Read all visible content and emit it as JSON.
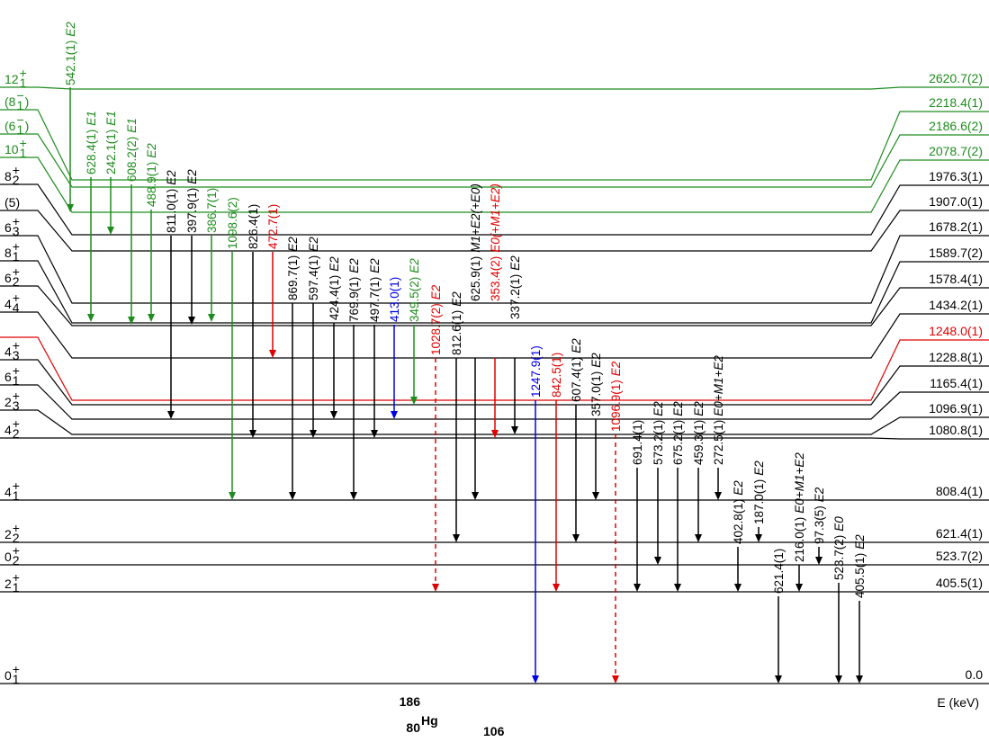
{
  "nucleus": {
    "mass": "186",
    "z": "80",
    "symbol": "Hg",
    "n": "106"
  },
  "axis_label": "E (keV)",
  "levels": [
    {
      "spin": {
        "base": "12",
        "sub": "1",
        "sup": "+"
      },
      "energy": "2620.7(2)",
      "color": "#1e8c1e"
    },
    {
      "spin": {
        "base": "(8",
        "sub": "1",
        "sup": "−",
        "suffix": ")"
      },
      "energy": "2218.4(1)",
      "color": "#1e8c1e"
    },
    {
      "spin": {
        "base": "(6",
        "sub": "1",
        "sup": "−",
        "suffix": ")"
      },
      "energy": "2186.6(2)",
      "color": "#1e8c1e"
    },
    {
      "spin": {
        "base": "10",
        "sub": "1",
        "sup": "+"
      },
      "energy": "2078.7(2)",
      "color": "#1e8c1e"
    },
    {
      "spin": {
        "base": "8",
        "sub": "2",
        "sup": "+"
      },
      "energy": "1976.3(1)"
    },
    {
      "spin": {
        "base": "(5)"
      },
      "energy": "1907.0(1)"
    },
    {
      "spin": {
        "base": "6",
        "sub": "3",
        "sup": "+"
      },
      "energy": "1678.2(1)"
    },
    {
      "spin": {
        "base": "8",
        "sub": "1",
        "sup": "+"
      },
      "energy": "1589.7(2)"
    },
    {
      "spin": {
        "base": "6",
        "sub": "2",
        "sup": "+"
      },
      "energy": "1578.4(1)"
    },
    {
      "spin": {
        "base": "4",
        "sub": "4",
        "sup": "+"
      },
      "energy": "1434.2(1)"
    },
    {
      "energy": "1248.0(1)",
      "color": "#e00000"
    },
    {
      "spin": {
        "base": "4",
        "sub": "3",
        "sup": "+"
      },
      "energy": "1228.8(1)"
    },
    {
      "spin": {
        "base": "6",
        "sub": "1",
        "sup": "+"
      },
      "energy": "1165.4(1)"
    },
    {
      "spin": {
        "base": "2",
        "sub": "3",
        "sup": "+"
      },
      "energy": "1096.9(1)"
    },
    {
      "spin": {
        "base": "4",
        "sub": "2",
        "sup": "+"
      },
      "energy": "1080.8(1)"
    },
    {
      "spin": {
        "base": "4",
        "sub": "1",
        "sup": "+"
      },
      "energy": "808.4(1)"
    },
    {
      "spin": {
        "base": "2",
        "sub": "2",
        "sup": "+"
      },
      "energy": "621.4(1)"
    },
    {
      "spin": {
        "base": "0",
        "sub": "2",
        "sup": "+"
      },
      "energy": "523.7(2)"
    },
    {
      "spin": {
        "base": "2",
        "sub": "1",
        "sup": "+"
      },
      "energy": "405.5(1)"
    },
    {
      "spin": {
        "base": "0",
        "sub": "1",
        "sup": "+"
      },
      "energy": "0.0"
    }
  ],
  "transitions": [
    {
      "energy": "542.1(1)",
      "mult": "E2",
      "color": "#1e8c1e"
    },
    {
      "energy": "628.4(1)",
      "mult": "E1",
      "color": "#1e8c1e"
    },
    {
      "energy": "242.1(1)",
      "mult": "E1",
      "color": "#1e8c1e"
    },
    {
      "energy": "608.2(2)",
      "mult": "E1",
      "color": "#1e8c1e"
    },
    {
      "energy": "488.9(1)",
      "mult": "E2",
      "color": "#1e8c1e"
    },
    {
      "energy": "811.0(1)",
      "mult": "E2"
    },
    {
      "energy": "397.9(1)",
      "mult": "E2"
    },
    {
      "energy": "386.7(1)",
      "color": "#1e8c1e"
    },
    {
      "energy": "1098.6(2)",
      "color": "#1e8c1e"
    },
    {
      "energy": "826.4(1)"
    },
    {
      "energy": "472.7(1)",
      "color": "#e00000"
    },
    {
      "energy": "869.7(1)",
      "mult": "E2"
    },
    {
      "energy": "597.4(1)",
      "mult": "E2"
    },
    {
      "energy": "424.4(1)",
      "mult": "E2"
    },
    {
      "energy": "769.9(1)",
      "mult": "E2"
    },
    {
      "energy": "497.7(1)",
      "mult": "E2"
    },
    {
      "energy": "413.0(1)",
      "color": "#0000e6"
    },
    {
      "energy": "349.5(2)",
      "mult": "E2",
      "color": "#1e8c1e"
    },
    {
      "energy": "1028.7(2)",
      "mult": "E2",
      "color": "#e00000",
      "dashed": true
    },
    {
      "energy": "812.6(1)",
      "mult": "E2"
    },
    {
      "energy": "625.9(1)",
      "mult": "M1+E2(+E0)"
    },
    {
      "energy": "353.4(2)",
      "mult": "E0(+M1+E2)",
      "color": "#e00000"
    },
    {
      "energy": "337.2(1)",
      "mult": "E2"
    },
    {
      "energy": "1247.9(1)",
      "color": "#0000e6"
    },
    {
      "energy": "842.5(1)",
      "color": "#e00000"
    },
    {
      "energy": "607.4(1)",
      "mult": "E2"
    },
    {
      "energy": "357.0(1)",
      "mult": "E2"
    },
    {
      "energy": "1096.9(1)",
      "mult": "E2",
      "color": "#e00000",
      "dashed": true
    },
    {
      "energy": "691.4(1)"
    },
    {
      "energy": "573.2(1)",
      "mult": "E2"
    },
    {
      "energy": "675.2(1)",
      "mult": "E2"
    },
    {
      "energy": "459.3(1)",
      "mult": "E2"
    },
    {
      "energy": "272.5(1)",
      "mult": "E0+M1+E2"
    },
    {
      "energy": "402.8(1)",
      "mult": "E2"
    },
    {
      "energy": "187.0(1)",
      "mult": "E2"
    },
    {
      "energy": "621.4(1)"
    },
    {
      "energy": "216.0(1)",
      "mult": "E0+M1+E2"
    },
    {
      "energy": "97.3(5)",
      "mult": "E2"
    },
    {
      "energy": "523.7(2)",
      "mult": "E0"
    },
    {
      "energy": "405.5(1)",
      "mult": "E2"
    }
  ]
}
